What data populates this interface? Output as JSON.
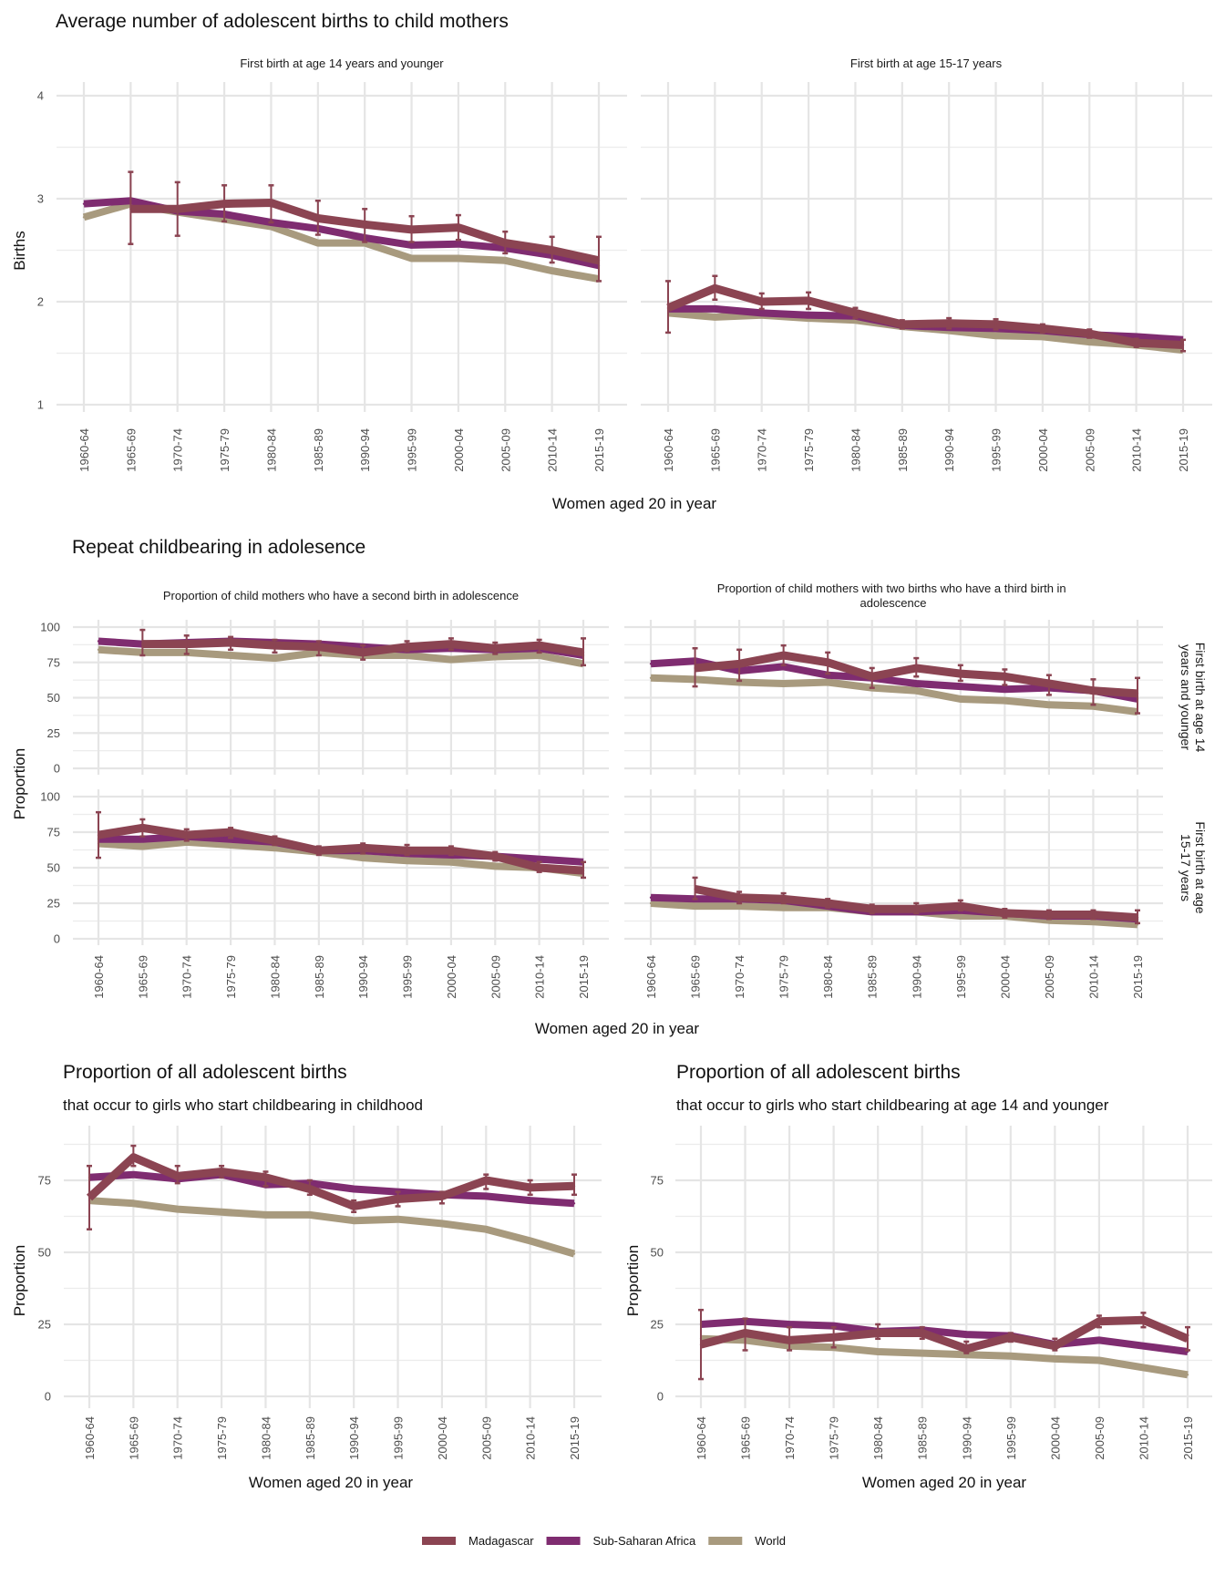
{
  "legend": {
    "items": [
      {
        "name": "Madagascar",
        "color": "#8B4452"
      },
      {
        "name": "Sub-Saharan Africa",
        "color": "#7F2C70"
      },
      {
        "name": "World",
        "color": "#A89A7E"
      }
    ]
  },
  "chart_data": [
    {
      "id": "avg-births-14",
      "type": "line",
      "section_title": "Average number of adolescent births to child mothers",
      "title": "First birth at age 14 years and younger",
      "xlabel": "Women aged 20 in year",
      "ylabel": "Births",
      "ylim": [
        1,
        4
      ],
      "yticks": [
        1,
        2,
        3,
        4
      ],
      "categories": [
        "1960-64",
        "1965-69",
        "1970-74",
        "1975-79",
        "1980-84",
        "1985-89",
        "1990-94",
        "1995-99",
        "2000-04",
        "2005-09",
        "2010-14",
        "2015-19"
      ],
      "series": [
        {
          "name": "World",
          "values": [
            2.82,
            2.95,
            2.87,
            2.8,
            2.73,
            2.57,
            2.57,
            2.42,
            2.42,
            2.4,
            2.3,
            2.22
          ]
        },
        {
          "name": "Sub-Saharan Africa",
          "values": [
            2.95,
            2.98,
            2.88,
            2.85,
            2.77,
            2.71,
            2.62,
            2.55,
            2.56,
            2.52,
            2.45,
            2.35
          ]
        },
        {
          "name": "Madagascar",
          "values": [
            null,
            2.9,
            2.9,
            2.95,
            2.96,
            2.81,
            2.75,
            2.7,
            2.72,
            2.57,
            2.5,
            2.4
          ],
          "error_bars": [
            null,
            [
              2.56,
              3.26
            ],
            [
              2.64,
              3.16
            ],
            [
              2.78,
              3.13
            ],
            [
              2.77,
              3.13
            ],
            [
              2.65,
              2.98
            ],
            [
              2.58,
              2.9
            ],
            [
              2.58,
              2.83
            ],
            [
              2.6,
              2.84
            ],
            [
              2.47,
              2.68
            ],
            [
              2.38,
              2.63
            ],
            [
              2.2,
              2.63
            ]
          ]
        }
      ]
    },
    {
      "id": "avg-births-15-17",
      "type": "line",
      "title": "First birth at age 15-17 years",
      "xlabel": "Women aged 20 in year",
      "ylabel": "Births",
      "ylim": [
        1,
        4
      ],
      "yticks": [
        1,
        2,
        3,
        4
      ],
      "categories": [
        "1960-64",
        "1965-69",
        "1970-74",
        "1975-79",
        "1980-84",
        "1985-89",
        "1990-94",
        "1995-99",
        "2000-04",
        "2005-09",
        "2010-14",
        "2015-19"
      ],
      "series": [
        {
          "name": "World",
          "values": [
            1.89,
            1.85,
            1.87,
            1.84,
            1.82,
            1.76,
            1.72,
            1.67,
            1.66,
            1.61,
            1.58,
            1.53
          ]
        },
        {
          "name": "Sub-Saharan Africa",
          "values": [
            1.93,
            1.93,
            1.89,
            1.87,
            1.86,
            1.77,
            1.75,
            1.74,
            1.72,
            1.68,
            1.66,
            1.63
          ]
        },
        {
          "name": "Madagascar",
          "values": [
            1.94,
            2.13,
            2.0,
            2.01,
            1.89,
            1.78,
            1.79,
            1.78,
            1.74,
            1.69,
            1.6,
            1.58
          ],
          "error_bars": [
            [
              1.7,
              2.2
            ],
            [
              2.02,
              2.25
            ],
            [
              1.93,
              2.08
            ],
            [
              1.93,
              2.09
            ],
            [
              1.84,
              1.94
            ],
            [
              1.74,
              1.82
            ],
            [
              1.74,
              1.84
            ],
            [
              1.73,
              1.83
            ],
            [
              1.7,
              1.78
            ],
            [
              1.65,
              1.73
            ],
            [
              1.56,
              1.64
            ],
            [
              1.52,
              1.63
            ]
          ]
        }
      ]
    },
    {
      "id": "second-birth-14",
      "type": "line",
      "section_title": "Repeat childbearing in adolesence",
      "title": "Proportion of child mothers who have a second birth in adolescence",
      "strip": "",
      "xlabel": "Women aged 20 in year",
      "ylabel": "Proportion",
      "ylim": [
        0,
        100
      ],
      "yticks": [
        0,
        25,
        50,
        75,
        100
      ],
      "categories": [
        "1960-64",
        "1965-69",
        "1970-74",
        "1975-79",
        "1980-84",
        "1985-89",
        "1990-94",
        "1995-99",
        "2000-04",
        "2005-09",
        "2010-14",
        "2015-19"
      ],
      "series": [
        {
          "name": "World",
          "values": [
            84,
            82,
            82,
            80,
            78,
            82,
            80,
            80,
            77,
            79,
            80,
            74
          ]
        },
        {
          "name": "Sub-Saharan Africa",
          "values": [
            90,
            88,
            89,
            90,
            89,
            88,
            86,
            84,
            85,
            84,
            85,
            80
          ]
        },
        {
          "name": "Madagascar",
          "values": [
            null,
            88,
            88,
            89,
            87,
            86,
            82,
            86,
            88,
            85,
            87,
            82
          ],
          "error_bars": [
            null,
            [
              80,
              98
            ],
            [
              81,
              94
            ],
            [
              84,
              93
            ],
            [
              82,
              91
            ],
            [
              80,
              90
            ],
            [
              77,
              87
            ],
            [
              83,
              90
            ],
            [
              84,
              92
            ],
            [
              81,
              89
            ],
            [
              82,
              91
            ],
            [
              73,
              92
            ]
          ]
        }
      ]
    },
    {
      "id": "third-birth-14",
      "type": "line",
      "title": "Proportion of child mothers with two births who have a third birth in adolescence",
      "strip": "First birth at age 14 years and younger",
      "xlabel": "Women aged 20 in year",
      "ylabel": "Proportion",
      "ylim": [
        0,
        100
      ],
      "yticks": [
        0,
        25,
        50,
        75,
        100
      ],
      "categories": [
        "1960-64",
        "1965-69",
        "1970-74",
        "1975-79",
        "1980-84",
        "1985-89",
        "1990-94",
        "1995-99",
        "2000-04",
        "2005-09",
        "2010-14",
        "2015-19"
      ],
      "series": [
        {
          "name": "World",
          "values": [
            64,
            63,
            61,
            60,
            61,
            57,
            55,
            49,
            48,
            45,
            44,
            40
          ]
        },
        {
          "name": "Sub-Saharan Africa",
          "values": [
            74,
            76,
            69,
            72,
            66,
            64,
            60,
            58,
            56,
            57,
            55,
            49
          ]
        },
        {
          "name": "Madagascar",
          "values": [
            null,
            71,
            74,
            80,
            75,
            65,
            71,
            67,
            65,
            60,
            55,
            53
          ],
          "error_bars": [
            null,
            [
              58,
              85
            ],
            [
              62,
              84
            ],
            [
              73,
              87
            ],
            [
              67,
              82
            ],
            [
              57,
              71
            ],
            [
              65,
              78
            ],
            [
              62,
              73
            ],
            [
              59,
              70
            ],
            [
              52,
              66
            ],
            [
              45,
              63
            ],
            [
              39,
              64
            ]
          ]
        }
      ]
    },
    {
      "id": "second-birth-15-17",
      "type": "line",
      "title": "",
      "strip": "",
      "xlabel": "Women aged 20 in year",
      "ylabel": "Proportion",
      "ylim": [
        0,
        100
      ],
      "yticks": [
        0,
        25,
        50,
        75,
        100
      ],
      "categories": [
        "1960-64",
        "1965-69",
        "1970-74",
        "1975-79",
        "1980-84",
        "1985-89",
        "1990-94",
        "1995-99",
        "2000-04",
        "2005-09",
        "2010-14",
        "2015-19"
      ],
      "series": [
        {
          "name": "World",
          "values": [
            67,
            65,
            68,
            66,
            64,
            61,
            57,
            55,
            54,
            51,
            50,
            46
          ]
        },
        {
          "name": "Sub-Saharan Africa",
          "values": [
            70,
            70,
            72,
            70,
            68,
            62,
            62,
            60,
            59,
            58,
            56,
            54
          ]
        },
        {
          "name": "Madagascar",
          "values": [
            73,
            78,
            73,
            75,
            69,
            62,
            64,
            62,
            62,
            58,
            50,
            48
          ],
          "error_bars": [
            [
              57,
              89
            ],
            [
              72,
              84
            ],
            [
              69,
              77
            ],
            [
              71,
              78
            ],
            [
              66,
              72
            ],
            [
              59,
              65
            ],
            [
              60,
              67
            ],
            [
              59,
              66
            ],
            [
              59,
              65
            ],
            [
              55,
              61
            ],
            [
              47,
              54
            ],
            [
              43,
              54
            ]
          ]
        }
      ]
    },
    {
      "id": "third-birth-15-17",
      "type": "line",
      "title": "",
      "strip": "First birth at age 15-17 years",
      "xlabel": "Women aged 20 in year",
      "ylabel": "Proportion",
      "ylim": [
        0,
        100
      ],
      "yticks": [
        0,
        25,
        50,
        75,
        100
      ],
      "categories": [
        "1960-64",
        "1965-69",
        "1970-74",
        "1975-79",
        "1980-84",
        "1985-89",
        "1990-94",
        "1995-99",
        "2000-04",
        "2005-09",
        "2010-14",
        "2015-19"
      ],
      "series": [
        {
          "name": "World",
          "values": [
            25,
            23,
            23,
            22,
            22,
            19,
            19,
            16,
            16,
            13,
            12,
            10
          ]
        },
        {
          "name": "Sub-Saharan Africa",
          "values": [
            29,
            28,
            28,
            27,
            23,
            19,
            19,
            20,
            18,
            16,
            16,
            14
          ]
        },
        {
          "name": "Madagascar",
          "values": [
            null,
            35,
            29,
            28,
            25,
            21,
            21,
            23,
            18,
            17,
            17,
            15
          ],
          "error_bars": [
            null,
            [
              28,
              43
            ],
            [
              25,
              33
            ],
            [
              25,
              32
            ],
            [
              22,
              28
            ],
            [
              18,
              24
            ],
            [
              18,
              25
            ],
            [
              20,
              27
            ],
            [
              15,
              21
            ],
            [
              14,
              20
            ],
            [
              14,
              20
            ],
            [
              11,
              20
            ]
          ]
        }
      ]
    },
    {
      "id": "prop-childhood",
      "type": "line",
      "title": "Proportion of all adolescent births",
      "subtitle": "that occur to girls who start childbearing in childhood",
      "xlabel": "Women aged 20 in year",
      "ylabel": "Proportion",
      "ylim": [
        -3,
        93
      ],
      "yticks": [
        0,
        25,
        50,
        75
      ],
      "categories": [
        "1960-64",
        "1965-69",
        "1970-74",
        "1975-79",
        "1980-84",
        "1985-89",
        "1990-94",
        "1995-99",
        "2000-04",
        "2005-09",
        "2010-14",
        "2015-19"
      ],
      "series": [
        {
          "name": "World",
          "values": [
            68,
            67,
            65,
            64,
            63,
            63,
            61,
            61.5,
            60,
            58,
            54,
            49.5
          ]
        },
        {
          "name": "Sub-Saharan Africa",
          "values": [
            76,
            77,
            75.5,
            77,
            73.5,
            74,
            72,
            71,
            70,
            69.5,
            68,
            67
          ]
        },
        {
          "name": "Madagascar",
          "values": [
            69,
            83,
            76.5,
            78,
            76,
            72,
            66,
            68.5,
            69.5,
            75,
            72.5,
            73
          ],
          "error_bars": [
            [
              58,
              80
            ],
            [
              80,
              87
            ],
            [
              74,
              80
            ],
            [
              76,
              80
            ],
            [
              73,
              78
            ],
            [
              70,
              75
            ],
            [
              64,
              68
            ],
            [
              66,
              71
            ],
            [
              67,
              71
            ],
            [
              72,
              77
            ],
            [
              70,
              75
            ],
            [
              70,
              77
            ]
          ]
        }
      ]
    },
    {
      "id": "prop-14-younger",
      "type": "line",
      "title": "Proportion of all adolescent births",
      "subtitle": "that occur to girls who start childbearing at age 14 and younger",
      "xlabel": "Women aged 20 in year",
      "ylabel": "Proportion",
      "ylim": [
        -3,
        93
      ],
      "yticks": [
        0,
        25,
        50,
        75
      ],
      "categories": [
        "1960-64",
        "1965-69",
        "1970-74",
        "1975-79",
        "1980-84",
        "1985-89",
        "1990-94",
        "1995-99",
        "2000-04",
        "2005-09",
        "2010-14",
        "2015-19"
      ],
      "series": [
        {
          "name": "World",
          "values": [
            20,
            19.5,
            17.5,
            17,
            15.5,
            15,
            14.5,
            14,
            13,
            12.5,
            10,
            7.5
          ]
        },
        {
          "name": "Sub-Saharan Africa",
          "values": [
            25,
            26,
            25,
            24.5,
            22.5,
            23,
            21.5,
            21,
            18,
            19.5,
            17.5,
            15.5
          ]
        },
        {
          "name": "Madagascar",
          "values": [
            18,
            22,
            19.5,
            20.5,
            22,
            22,
            16.5,
            20.5,
            17.5,
            26,
            26.5,
            20
          ],
          "error_bars": [
            [
              6,
              30
            ],
            [
              16,
              27
            ],
            [
              16,
              24
            ],
            [
              17,
              24
            ],
            [
              20,
              25
            ],
            [
              20,
              24
            ],
            [
              15,
              19
            ],
            [
              19,
              22
            ],
            [
              16,
              20
            ],
            [
              24,
              28
            ],
            [
              24,
              29
            ],
            [
              16,
              24
            ]
          ]
        }
      ]
    }
  ],
  "axis_titles": {
    "section1_x": "Women aged 20 in year",
    "section2_x": "Women aged 20 in year",
    "section2_y": "Proportion",
    "section3_left_x": "Women aged 20 in year",
    "section3_right_x": "Women aged 20 in year"
  }
}
